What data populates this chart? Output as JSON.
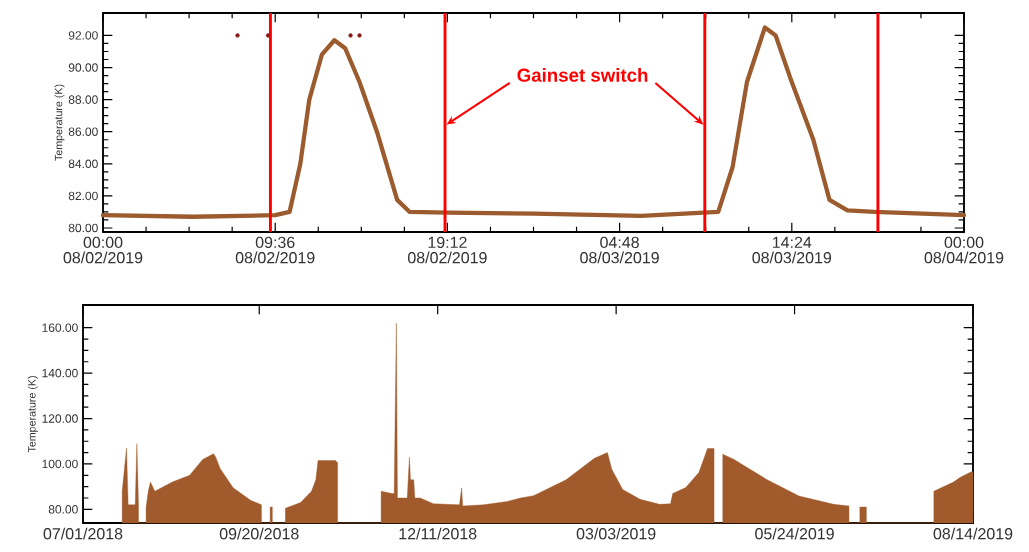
{
  "chart_data": [
    {
      "type": "line",
      "ylabel": "Temperature (K)",
      "series": [
        {
          "type": "line",
          "color": "#9c5b2e",
          "x": [
            "2019-08-02T00:00",
            "2019-08-02T05:00",
            "2019-08-02T09:36",
            "2019-08-02T10:24",
            "2019-08-02T11:00",
            "2019-08-02T11:30",
            "2019-08-02T12:12",
            "2019-08-02T12:54",
            "2019-08-02T13:30",
            "2019-08-02T14:18",
            "2019-08-02T15:18",
            "2019-08-02T16:24",
            "2019-08-02T17:06",
            "2019-08-02T19:12",
            "2019-08-03T00:00",
            "2019-08-03T06:00",
            "2019-08-03T10:18",
            "2019-08-03T11:06",
            "2019-08-03T11:54",
            "2019-08-03T12:54",
            "2019-08-03T13:30",
            "2019-08-03T14:18",
            "2019-08-03T15:36",
            "2019-08-03T16:30",
            "2019-08-03T17:30",
            "2019-08-03T19:00",
            "2019-08-04T00:00"
          ],
          "values": [
            80.8,
            80.7,
            80.8,
            81.0,
            84.0,
            88.0,
            90.8,
            91.7,
            91.2,
            89.1,
            85.9,
            81.75,
            81.0,
            80.95,
            80.9,
            80.75,
            81.0,
            83.8,
            89.1,
            92.5,
            92.0,
            89.4,
            85.5,
            81.75,
            81.1,
            81.0,
            80.8
          ]
        },
        {
          "type": "scatter",
          "color": "#8b1a1a",
          "x": [
            "2019-08-02T07:30",
            "2019-08-02T09:12",
            "2019-08-02T13:48",
            "2019-08-02T14:18"
          ],
          "values": [
            92.0,
            92.0,
            92.0,
            92.0
          ]
        }
      ],
      "xlim": [
        "2019-08-02T00:00",
        "2019-08-04T00:00"
      ],
      "ylim": [
        79.75,
        93.4
      ],
      "xticks": [
        {
          "value": "2019-08-02T00:00",
          "label": "00:00 08/02/2019"
        },
        {
          "value": "2019-08-02T09:36",
          "label": "09:36 08/02/2019"
        },
        {
          "value": "2019-08-02T19:12",
          "label": "19:12 08/02/2019"
        },
        {
          "value": "2019-08-03T04:48",
          "label": "04:48 08/03/2019"
        },
        {
          "value": "2019-08-03T14:24",
          "label": "14:24 08/03/2019"
        },
        {
          "value": "2019-08-04T00:00",
          "label": "00:00 08/04/2019"
        }
      ],
      "yticks": [
        {
          "value": 80,
          "label": "80.00"
        },
        {
          "value": 82,
          "label": "82.00"
        },
        {
          "value": 84,
          "label": "84.00"
        },
        {
          "value": 86,
          "label": "86.00"
        },
        {
          "value": 88,
          "label": "88.00"
        },
        {
          "value": 90,
          "label": "90.00"
        },
        {
          "value": 92,
          "label": "92.00"
        }
      ],
      "ref_lines": [
        {
          "axis": "x",
          "value": "2019-08-02T09:20",
          "color": "#ff0000"
        },
        {
          "axis": "x",
          "value": "2019-08-02T19:04",
          "color": "#ff0000"
        },
        {
          "axis": "x",
          "value": "2019-08-03T09:33",
          "color": "#ff0000"
        },
        {
          "axis": "x",
          "value": "2019-08-03T19:12",
          "color": "#ff0000"
        }
      ],
      "annotations": [
        "Gainset switch"
      ]
    },
    {
      "type": "area",
      "ylabel": "Temperature (K)",
      "color": "#a05a2c",
      "x": [
        "2018-07-19",
        "2018-07-21",
        "2018-07-21T18:00",
        "2018-07-25",
        "2018-07-25T18:00",
        "2018-07-26T12:00",
        "2018-07-28",
        "2018-07-30",
        "2018-07-31",
        "2018-08-01",
        "2018-08-03",
        "2018-08-11",
        "2018-08-19",
        "2018-08-25",
        "2018-08-30",
        "2018-08-31",
        "2018-09-02",
        "2018-09-08",
        "2018-09-16",
        "2018-09-21",
        "2018-09-23",
        "2018-09-25",
        "2018-09-26",
        "2018-09-28",
        "2018-10-02",
        "2018-10-09",
        "2018-10-14",
        "2018-10-16",
        "2018-10-17",
        "2018-10-25",
        "2018-10-26",
        "2018-10-28",
        "2018-11-15",
        "2018-11-20",
        "2018-11-21",
        "2018-11-22",
        "2018-11-22T12:00",
        "2018-11-27",
        "2018-11-28",
        "2018-11-28T12:00",
        "2018-11-30",
        "2018-11-30T12:00",
        "2018-12-03",
        "2018-12-09",
        "2018-12-21",
        "2018-12-22",
        "2018-12-22T12:00",
        "2019-01-01",
        "2019-01-12",
        "2019-01-18",
        "2019-01-24",
        "2019-02-08",
        "2019-02-21",
        "2019-02-27",
        "2019-03-01",
        "2019-03-06",
        "2019-03-14",
        "2019-03-23",
        "2019-03-28",
        "2019-03-29",
        "2019-04-04",
        "2019-04-10",
        "2019-04-14",
        "2019-04-17",
        "2019-04-18",
        "2019-04-21",
        "2019-04-26",
        "2019-05-11",
        "2019-05-26",
        "2019-06-11",
        "2019-06-18",
        "2019-06-20",
        "2019-06-23",
        "2019-06-26",
        "2019-07-10",
        "2019-07-27",
        "2019-08-05",
        "2019-08-08",
        "2019-08-13",
        "2019-08-14"
      ],
      "values": [
        88,
        107,
        82,
        82,
        109,
        82,
        null,
        81,
        88,
        92,
        88,
        92,
        95,
        102,
        104.5,
        103,
        98,
        89.5,
        84,
        82,
        null,
        81,
        81,
        null,
        80.5,
        83,
        88,
        93,
        101.5,
        101.5,
        100.5,
        null,
        88,
        87,
        87,
        162,
        85,
        85,
        103,
        93,
        93,
        85,
        85,
        82.5,
        82,
        89.5,
        81.5,
        82,
        83.5,
        85,
        86,
        93,
        102.5,
        105,
        97.7,
        88.8,
        84.4,
        82.2,
        82.5,
        87,
        89.6,
        96.2,
        106.8,
        106.8,
        null,
        104.3,
        102.1,
        93.3,
        85.9,
        82.2,
        81.5,
        null,
        81,
        81,
        null,
        88,
        92,
        94,
        96.5,
        96.5
      ],
      "xlim": [
        "2018-07-01",
        "2019-08-14"
      ],
      "ylim": [
        74,
        170
      ],
      "xticks": [
        {
          "value": "2018-07-01",
          "label": "07/01/2018"
        },
        {
          "value": "2018-09-20",
          "label": "09/20/2018"
        },
        {
          "value": "2018-12-11",
          "label": "12/11/2018"
        },
        {
          "value": "2019-03-03",
          "label": "03/03/2019"
        },
        {
          "value": "2019-05-24",
          "label": "05/24/2019"
        },
        {
          "value": "2019-08-14",
          "label": "08/14/2019"
        }
      ],
      "yticks": [
        {
          "value": 80,
          "label": "80.00"
        },
        {
          "value": 100,
          "label": "100.00"
        },
        {
          "value": 120,
          "label": "120.00"
        },
        {
          "value": 140,
          "label": "140.00"
        },
        {
          "value": 160,
          "label": "160.00"
        }
      ]
    }
  ]
}
